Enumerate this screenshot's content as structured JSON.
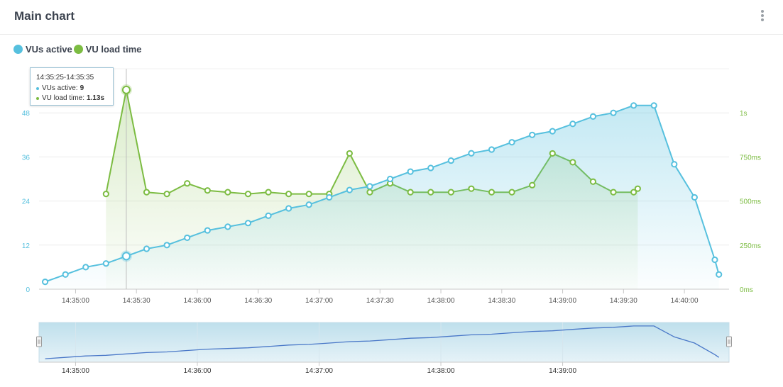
{
  "header": {
    "title": "Main chart",
    "menu_icon": "more-vertical-icon"
  },
  "colors": {
    "vus": "#56c0de",
    "loadtime": "#7cbc42",
    "navigator_line": "#4a78c8"
  },
  "tooltip": {
    "range": "14:35:25-14:35:35",
    "vus_label": "VUs active:",
    "vus_value": "9",
    "load_label": "VU load time:",
    "load_value": "1.13s"
  },
  "chart_data": {
    "type": "line",
    "x_unit": "time",
    "x_range": [
      "14:34:42",
      "14:40:22"
    ],
    "x_ticks": [
      "14:35:00",
      "14:35:30",
      "14:36:00",
      "14:36:30",
      "14:37:00",
      "14:37:30",
      "14:38:00",
      "14:38:30",
      "14:39:00",
      "14:39:30",
      "14:40:00"
    ],
    "y_left": {
      "range": [
        0,
        60
      ],
      "ticks": [
        "0",
        "12",
        "24",
        "36",
        "48"
      ],
      "tick_values": [
        0,
        12,
        24,
        36,
        48
      ]
    },
    "y_right": {
      "range": [
        0,
        1.25
      ],
      "ticks": [
        "0ms",
        "250ms",
        "500ms",
        "750ms",
        "1s"
      ],
      "tick_values": [
        0,
        0.25,
        0.5,
        0.75,
        1.0
      ]
    },
    "legend": "top-left",
    "grid": true,
    "series": [
      {
        "name": "VUs active",
        "axis": "left",
        "x": [
          "14:34:45",
          "14:34:55",
          "14:35:05",
          "14:35:15",
          "14:35:25",
          "14:35:35",
          "14:35:45",
          "14:35:55",
          "14:36:05",
          "14:36:15",
          "14:36:25",
          "14:36:35",
          "14:36:45",
          "14:36:55",
          "14:37:05",
          "14:37:15",
          "14:37:25",
          "14:37:35",
          "14:37:45",
          "14:37:55",
          "14:38:05",
          "14:38:15",
          "14:38:25",
          "14:38:35",
          "14:38:45",
          "14:38:55",
          "14:39:05",
          "14:39:15",
          "14:39:25",
          "14:39:35",
          "14:39:45",
          "14:39:55",
          "14:40:05",
          "14:40:15",
          "14:40:17"
        ],
        "values": [
          2,
          4,
          6,
          7,
          9,
          11,
          12,
          14,
          16,
          17,
          18,
          20,
          22,
          23,
          25,
          27,
          28,
          30,
          32,
          33,
          35,
          37,
          38,
          40,
          42,
          43,
          45,
          47,
          48,
          50,
          50,
          34,
          25,
          8,
          4
        ]
      },
      {
        "name": "VU load time",
        "axis": "right",
        "unit": "s",
        "x": [
          "14:35:15",
          "14:35:25",
          "14:35:35",
          "14:35:45",
          "14:35:55",
          "14:36:05",
          "14:36:15",
          "14:36:25",
          "14:36:35",
          "14:36:45",
          "14:36:55",
          "14:37:05",
          "14:37:15",
          "14:37:25",
          "14:37:35",
          "14:37:45",
          "14:37:55",
          "14:38:05",
          "14:38:15",
          "14:38:25",
          "14:38:35",
          "14:38:45",
          "14:38:55",
          "14:39:05",
          "14:39:15",
          "14:39:25",
          "14:39:35",
          "14:39:37"
        ],
        "values": [
          0.54,
          1.13,
          0.55,
          0.54,
          0.6,
          0.56,
          0.55,
          0.54,
          0.55,
          0.54,
          0.54,
          0.54,
          0.77,
          0.55,
          0.6,
          0.55,
          0.55,
          0.55,
          0.57,
          0.55,
          0.55,
          0.59,
          0.77,
          0.72,
          0.61,
          0.55,
          0.55,
          0.57
        ]
      }
    ],
    "highlight_x": "14:35:25",
    "navigator": {
      "x_ticks": [
        "14:35:00",
        "14:36:00",
        "14:37:00",
        "14:38:00",
        "14:39:00"
      ]
    }
  }
}
